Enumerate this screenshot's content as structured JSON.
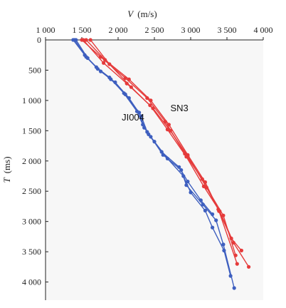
{
  "chart_data": {
    "type": "line",
    "xlabel": "V",
    "xunit": "(m/s)",
    "ylabel": "T",
    "yunit": "(ms)",
    "xlim": [
      1000,
      4000
    ],
    "ylim": [
      0,
      4300
    ],
    "y_reversed": true,
    "x_axis_position": "top",
    "xticks": [
      1000,
      1500,
      2000,
      2500,
      3000,
      3500,
      4000
    ],
    "xtick_labels": [
      "1 000",
      "1 500",
      "2 000",
      "2 500",
      "3 000",
      "3 500",
      "4 000"
    ],
    "yticks": [
      0,
      500,
      1000,
      1500,
      2000,
      2500,
      3000,
      3500,
      4000
    ],
    "ytick_labels": [
      "0",
      "500",
      "1 000",
      "1 500",
      "2 000",
      "2 500",
      "3 000",
      "3 500",
      "4 000"
    ],
    "grid": false,
    "annotations": [
      {
        "text": "SN3",
        "x": 2720,
        "y": 1180
      },
      {
        "text": "JI004",
        "x": 2050,
        "y": 1330
      }
    ],
    "series": [
      {
        "color": "#e53a3a",
        "points": [
          [
            1560,
            0
          ],
          [
            1820,
            330
          ],
          [
            2150,
            650
          ],
          [
            2450,
            1000
          ],
          [
            2700,
            1400
          ],
          [
            2960,
            1900
          ],
          [
            3200,
            2350
          ],
          [
            3390,
            2830
          ],
          [
            3640,
            3700
          ]
        ]
      },
      {
        "color": "#e53a3a",
        "points": [
          [
            1520,
            0
          ],
          [
            1800,
            380
          ],
          [
            2120,
            720
          ],
          [
            2440,
            1080
          ],
          [
            2680,
            1480
          ],
          [
            2940,
            1930
          ],
          [
            3180,
            2420
          ],
          [
            3400,
            2830
          ],
          [
            3590,
            3350
          ],
          [
            3800,
            3750
          ]
        ]
      },
      {
        "color": "#e53a3a",
        "points": [
          [
            1620,
            0
          ],
          [
            1880,
            400
          ],
          [
            2180,
            780
          ],
          [
            2480,
            1130
          ],
          [
            2720,
            1500
          ],
          [
            2960,
            1920
          ],
          [
            3220,
            2440
          ],
          [
            3450,
            2900
          ],
          [
            3620,
            3560
          ]
        ]
      },
      {
        "color": "#e53a3a",
        "points": [
          [
            1500,
            0
          ],
          [
            1760,
            280
          ],
          [
            2100,
            630
          ],
          [
            2400,
            960
          ],
          [
            2650,
            1350
          ],
          [
            2920,
            1880
          ],
          [
            3160,
            2300
          ],
          [
            3380,
            2800
          ],
          [
            3560,
            3280
          ],
          [
            3700,
            3480
          ]
        ]
      },
      {
        "color": "#3e5fbf",
        "points": [
          [
            1400,
            0
          ],
          [
            1560,
            280
          ],
          [
            1720,
            480
          ],
          [
            1900,
            650
          ],
          [
            2100,
            900
          ],
          [
            2290,
            1200
          ],
          [
            2360,
            1450
          ],
          [
            2450,
            1600
          ],
          [
            2620,
            1900
          ],
          [
            2870,
            2150
          ],
          [
            2940,
            2400
          ],
          [
            3170,
            2720
          ],
          [
            3350,
            2980
          ],
          [
            3450,
            3380
          ],
          [
            3600,
            4100
          ]
        ]
      },
      {
        "color": "#3e5fbf",
        "points": [
          [
            1420,
            0
          ],
          [
            1580,
            300
          ],
          [
            1760,
            520
          ],
          [
            1960,
            700
          ],
          [
            2150,
            960
          ],
          [
            2320,
            1260
          ],
          [
            2400,
            1520
          ],
          [
            2500,
            1680
          ],
          [
            2680,
            1960
          ],
          [
            2900,
            2250
          ],
          [
            3000,
            2520
          ],
          [
            3200,
            2820
          ],
          [
            3300,
            3100
          ],
          [
            3460,
            3480
          ],
          [
            3550,
            3900
          ]
        ]
      },
      {
        "color": "#3e5fbf",
        "points": [
          [
            1380,
            0
          ],
          [
            1540,
            250
          ],
          [
            1700,
            450
          ],
          [
            1880,
            620
          ],
          [
            2080,
            880
          ],
          [
            2260,
            1180
          ],
          [
            2340,
            1400
          ],
          [
            2420,
            1560
          ],
          [
            2600,
            1850
          ],
          [
            2840,
            2100
          ],
          [
            2960,
            2340
          ],
          [
            3140,
            2650
          ],
          [
            3300,
            2880
          ]
        ]
      }
    ]
  }
}
